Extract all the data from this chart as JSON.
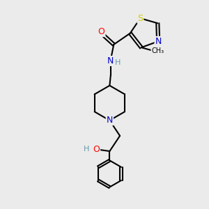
{
  "bg_color": "#ebebeb",
  "atom_colors": {
    "C": "#000000",
    "N": "#0000cc",
    "O": "#ff0000",
    "S": "#cccc00",
    "H": "#6699aa"
  },
  "bond_color": "#000000",
  "bond_width": 1.5
}
